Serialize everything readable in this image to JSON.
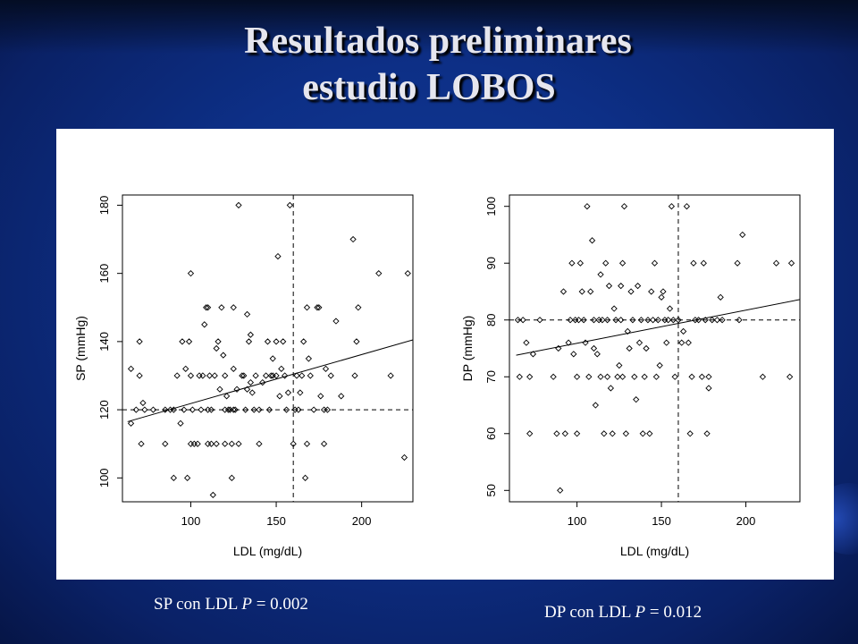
{
  "title": {
    "line1": "Resultados preliminares",
    "line2": "estudio LOBOS"
  },
  "captions": [
    {
      "text": "SP con LDL ",
      "p": "P",
      "eq": " = 0.002"
    },
    {
      "text": "DP con LDL ",
      "p": "P",
      "eq": " = 0.012"
    }
  ],
  "colors": {
    "background": "#0d2f86",
    "title": "#e6e6ee",
    "panel": "#ffffff",
    "ink": "#000000"
  },
  "chart_data": [
    {
      "type": "scatter",
      "title": "",
      "xlabel": "LDL (mg/dL)",
      "ylabel": "SP (mmHg)",
      "xlim": [
        60,
        230
      ],
      "ylim": [
        93,
        183
      ],
      "xticks": [
        100,
        150,
        200
      ],
      "yticks": [
        100,
        120,
        140,
        160,
        180
      ],
      "ref_x": 160,
      "ref_y": 120,
      "trend": [
        [
          63,
          116.5
        ],
        [
          230,
          140.5
        ]
      ],
      "points": [
        [
          65,
          116
        ],
        [
          65,
          132
        ],
        [
          68,
          120
        ],
        [
          70,
          140
        ],
        [
          70,
          130
        ],
        [
          71,
          110
        ],
        [
          72,
          122
        ],
        [
          73,
          120
        ],
        [
          78,
          120
        ],
        [
          85,
          120
        ],
        [
          85,
          110
        ],
        [
          88,
          120
        ],
        [
          90,
          100
        ],
        [
          90,
          120
        ],
        [
          92,
          130
        ],
        [
          94,
          116
        ],
        [
          95,
          140
        ],
        [
          96,
          120
        ],
        [
          97,
          132
        ],
        [
          98,
          100
        ],
        [
          99,
          140
        ],
        [
          100,
          160
        ],
        [
          100,
          110
        ],
        [
          100,
          130
        ],
        [
          101,
          120
        ],
        [
          102,
          110
        ],
        [
          104,
          110
        ],
        [
          105,
          130
        ],
        [
          106,
          120
        ],
        [
          107,
          130
        ],
        [
          108,
          145
        ],
        [
          109,
          150
        ],
        [
          110,
          110
        ],
        [
          110,
          150
        ],
        [
          110,
          120
        ],
        [
          111,
          130
        ],
        [
          112,
          120
        ],
        [
          112,
          110
        ],
        [
          113,
          95
        ],
        [
          114,
          130
        ],
        [
          115,
          110
        ],
        [
          115,
          138
        ],
        [
          116,
          140
        ],
        [
          117,
          126
        ],
        [
          118,
          150
        ],
        [
          119,
          136
        ],
        [
          120,
          130
        ],
        [
          120,
          110
        ],
        [
          120,
          120
        ],
        [
          121,
          124
        ],
        [
          122,
          120
        ],
        [
          123,
          120
        ],
        [
          124,
          110
        ],
        [
          124,
          100
        ],
        [
          125,
          132
        ],
        [
          125,
          150
        ],
        [
          125,
          120
        ],
        [
          126,
          120
        ],
        [
          127,
          126
        ],
        [
          128,
          180
        ],
        [
          128,
          110
        ],
        [
          130,
          130
        ],
        [
          131,
          130
        ],
        [
          132,
          120
        ],
        [
          133,
          148
        ],
        [
          133,
          126
        ],
        [
          134,
          140
        ],
        [
          135,
          142
        ],
        [
          135,
          128
        ],
        [
          136,
          125
        ],
        [
          137,
          120
        ],
        [
          138,
          130
        ],
        [
          140,
          110
        ],
        [
          140,
          120
        ],
        [
          142,
          128
        ],
        [
          144,
          130
        ],
        [
          145,
          140
        ],
        [
          146,
          120
        ],
        [
          147,
          130
        ],
        [
          148,
          135
        ],
        [
          148,
          130
        ],
        [
          150,
          140
        ],
        [
          150,
          130
        ],
        [
          151,
          165
        ],
        [
          152,
          124
        ],
        [
          153,
          132
        ],
        [
          154,
          140
        ],
        [
          155,
          130
        ],
        [
          156,
          120
        ],
        [
          157,
          125
        ],
        [
          158,
          180
        ],
        [
          160,
          110
        ],
        [
          161,
          120
        ],
        [
          162,
          130
        ],
        [
          163,
          120
        ],
        [
          164,
          125
        ],
        [
          165,
          130
        ],
        [
          166,
          140
        ],
        [
          167,
          100
        ],
        [
          168,
          110
        ],
        [
          168,
          150
        ],
        [
          169,
          135
        ],
        [
          170,
          130
        ],
        [
          172,
          120
        ],
        [
          174,
          150
        ],
        [
          175,
          150
        ],
        [
          176,
          124
        ],
        [
          178,
          110
        ],
        [
          178,
          120
        ],
        [
          179,
          132
        ],
        [
          180,
          120
        ],
        [
          182,
          130
        ],
        [
          185,
          146
        ],
        [
          188,
          124
        ],
        [
          195,
          170
        ],
        [
          196,
          130
        ],
        [
          197,
          140
        ],
        [
          198,
          150
        ],
        [
          210,
          160
        ],
        [
          217,
          130
        ],
        [
          225,
          106
        ],
        [
          227,
          160
        ]
      ]
    },
    {
      "type": "scatter",
      "title": "",
      "xlabel": "LDL (mg/dL)",
      "ylabel": "DP (mmHg)",
      "xlim": [
        60,
        232
      ],
      "ylim": [
        48,
        102
      ],
      "xticks": [
        100,
        150,
        200
      ],
      "yticks": [
        50,
        60,
        70,
        80,
        90,
        100
      ],
      "ref_x": 160,
      "ref_y": 80,
      "trend": [
        [
          64,
          73.8
        ],
        [
          232,
          83.6
        ]
      ],
      "points": [
        [
          65,
          80
        ],
        [
          66,
          70
        ],
        [
          68,
          80
        ],
        [
          70,
          76
        ],
        [
          72,
          60
        ],
        [
          72,
          70
        ],
        [
          74,
          74
        ],
        [
          78,
          80
        ],
        [
          86,
          70
        ],
        [
          88,
          60
        ],
        [
          89,
          75
        ],
        [
          90,
          50
        ],
        [
          92,
          85
        ],
        [
          93,
          60
        ],
        [
          95,
          76
        ],
        [
          96,
          80
        ],
        [
          97,
          90
        ],
        [
          98,
          74
        ],
        [
          99,
          80
        ],
        [
          100,
          70
        ],
        [
          100,
          60
        ],
        [
          101,
          80
        ],
        [
          102,
          90
        ],
        [
          103,
          85
        ],
        [
          104,
          80
        ],
        [
          105,
          76
        ],
        [
          106,
          100
        ],
        [
          107,
          70
        ],
        [
          108,
          85
        ],
        [
          109,
          94
        ],
        [
          110,
          75
        ],
        [
          110,
          80
        ],
        [
          111,
          65
        ],
        [
          112,
          74
        ],
        [
          113,
          80
        ],
        [
          114,
          70
        ],
        [
          114,
          88
        ],
        [
          115,
          80
        ],
        [
          116,
          60
        ],
        [
          117,
          90
        ],
        [
          118,
          80
        ],
        [
          118,
          70
        ],
        [
          119,
          86
        ],
        [
          120,
          68
        ],
        [
          121,
          60
        ],
        [
          122,
          82
        ],
        [
          123,
          80
        ],
        [
          124,
          70
        ],
        [
          125,
          72
        ],
        [
          126,
          80
        ],
        [
          126,
          86
        ],
        [
          127,
          90
        ],
        [
          127,
          70
        ],
        [
          128,
          100
        ],
        [
          129,
          60
        ],
        [
          130,
          78
        ],
        [
          131,
          75
        ],
        [
          132,
          85
        ],
        [
          133,
          80
        ],
        [
          134,
          70
        ],
        [
          135,
          66
        ],
        [
          136,
          86
        ],
        [
          137,
          76
        ],
        [
          138,
          80
        ],
        [
          139,
          60
        ],
        [
          140,
          70
        ],
        [
          141,
          75
        ],
        [
          142,
          80
        ],
        [
          143,
          60
        ],
        [
          144,
          85
        ],
        [
          145,
          80
        ],
        [
          146,
          90
        ],
        [
          147,
          70
        ],
        [
          148,
          80
        ],
        [
          149,
          72
        ],
        [
          150,
          84
        ],
        [
          151,
          85
        ],
        [
          152,
          80
        ],
        [
          153,
          76
        ],
        [
          154,
          80
        ],
        [
          155,
          82
        ],
        [
          156,
          100
        ],
        [
          157,
          80
        ],
        [
          158,
          70
        ],
        [
          160,
          80
        ],
        [
          162,
          76
        ],
        [
          163,
          78
        ],
        [
          165,
          100
        ],
        [
          166,
          76
        ],
        [
          167,
          60
        ],
        [
          168,
          70
        ],
        [
          169,
          90
        ],
        [
          170,
          80
        ],
        [
          172,
          80
        ],
        [
          174,
          70
        ],
        [
          175,
          90
        ],
        [
          176,
          80
        ],
        [
          177,
          60
        ],
        [
          178,
          70
        ],
        [
          178,
          68
        ],
        [
          180,
          80
        ],
        [
          183,
          80
        ],
        [
          185,
          84
        ],
        [
          186,
          80
        ],
        [
          195,
          90
        ],
        [
          196,
          80
        ],
        [
          198,
          95
        ],
        [
          210,
          70
        ],
        [
          218,
          90
        ],
        [
          226,
          70
        ],
        [
          227,
          90
        ]
      ]
    }
  ]
}
